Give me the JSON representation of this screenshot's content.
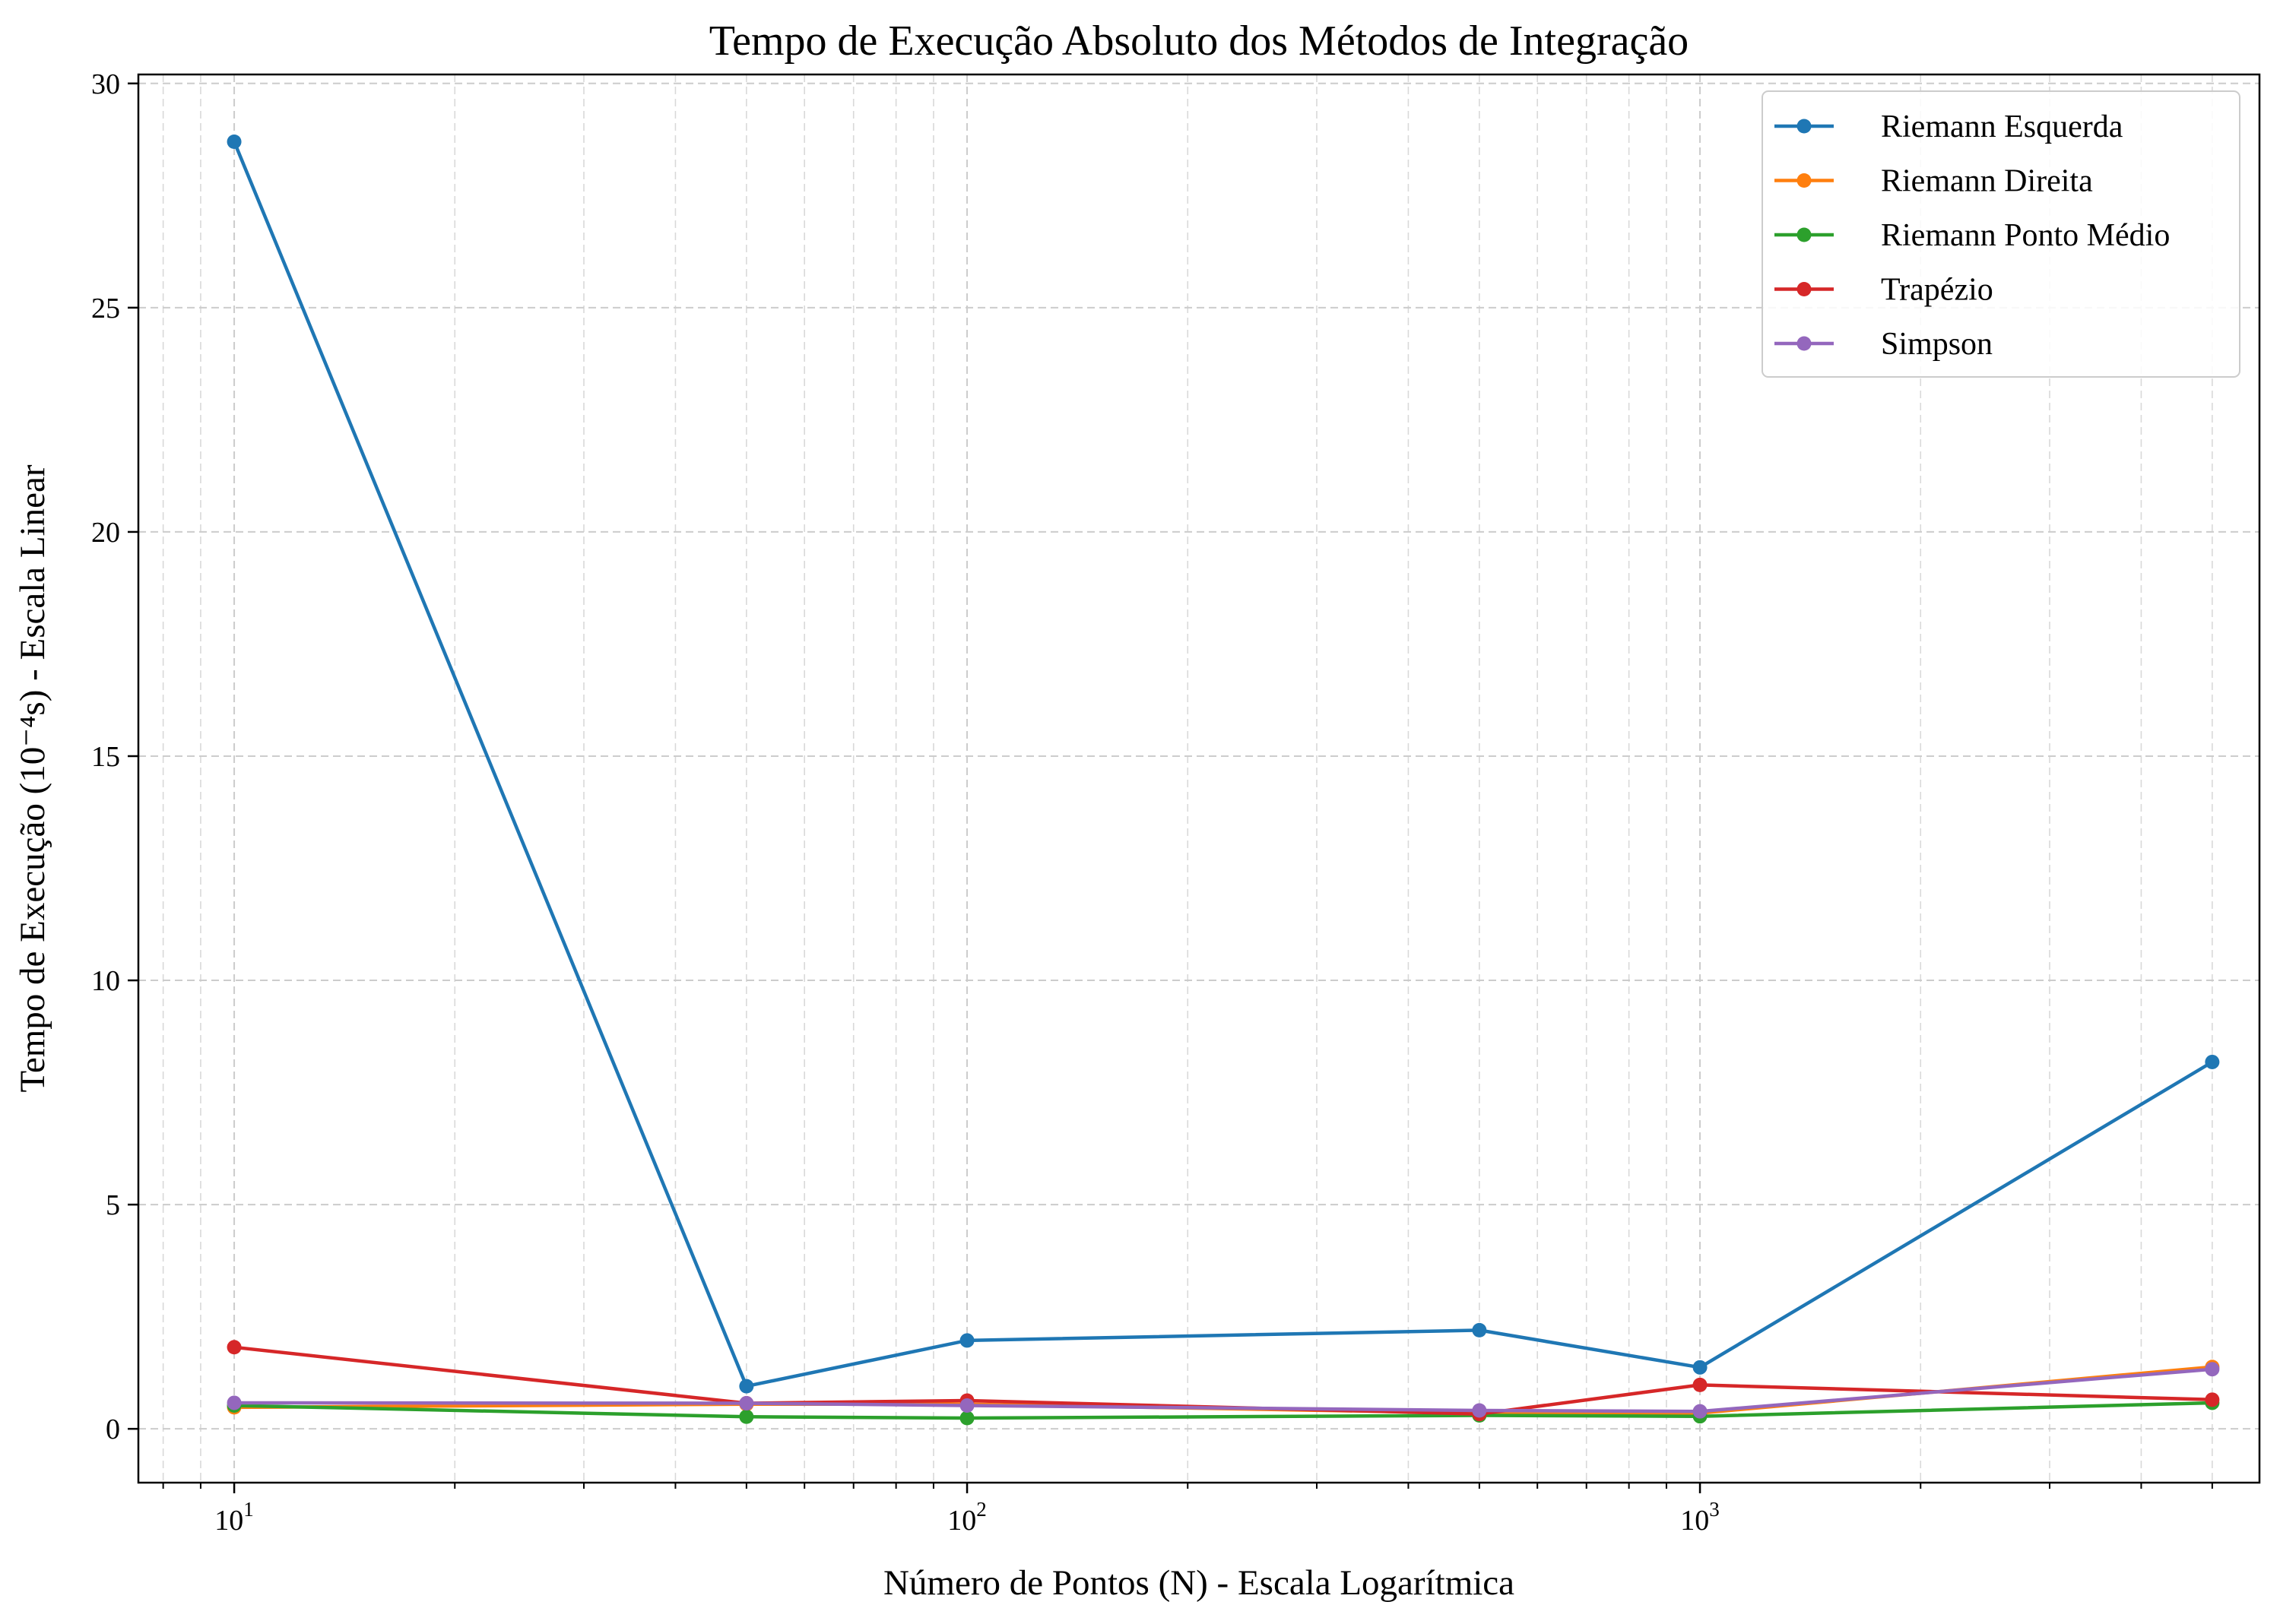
{
  "chart_data": {
    "type": "line",
    "title": "Tempo de Execução Absoluto dos Métodos de Integração",
    "xlabel": "Número de Pontos (N) - Escala Logarítmica",
    "ylabel": "Tempo de Execução (10⁻⁴s) - Escala Linear",
    "xscale": "log",
    "xlim": [
      7.4,
      5800
    ],
    "ylim": [
      -1.2,
      30.2
    ],
    "yticks": [
      0,
      5,
      10,
      15,
      20,
      25,
      30
    ],
    "xticks": [
      {
        "value": 10,
        "base": "10",
        "exp": "1"
      },
      {
        "value": 100,
        "base": "10",
        "exp": "2"
      },
      {
        "value": 1000,
        "base": "10",
        "exp": "3"
      }
    ],
    "grid": true,
    "legend_position": "top-right",
    "x": [
      10,
      50,
      100,
      500,
      1000,
      5000
    ],
    "series": [
      {
        "name": "Riemann Esquerda",
        "color": "#1f77b4",
        "values": [
          28.7,
          0.95,
          1.97,
          2.2,
          1.37,
          8.18
        ]
      },
      {
        "name": "Riemann Direita",
        "color": "#ff7f0e",
        "values": [
          0.48,
          0.55,
          0.55,
          0.35,
          0.35,
          1.38
        ]
      },
      {
        "name": "Riemann Ponto Médio",
        "color": "#2ca02c",
        "values": [
          0.52,
          0.27,
          0.24,
          0.3,
          0.28,
          0.58
        ]
      },
      {
        "name": "Trapézio",
        "color": "#d62728",
        "values": [
          1.82,
          0.57,
          0.63,
          0.33,
          0.98,
          0.65
        ]
      },
      {
        "name": "Simpson",
        "color": "#9467bd",
        "values": [
          0.58,
          0.57,
          0.52,
          0.41,
          0.39,
          1.33
        ]
      }
    ]
  }
}
